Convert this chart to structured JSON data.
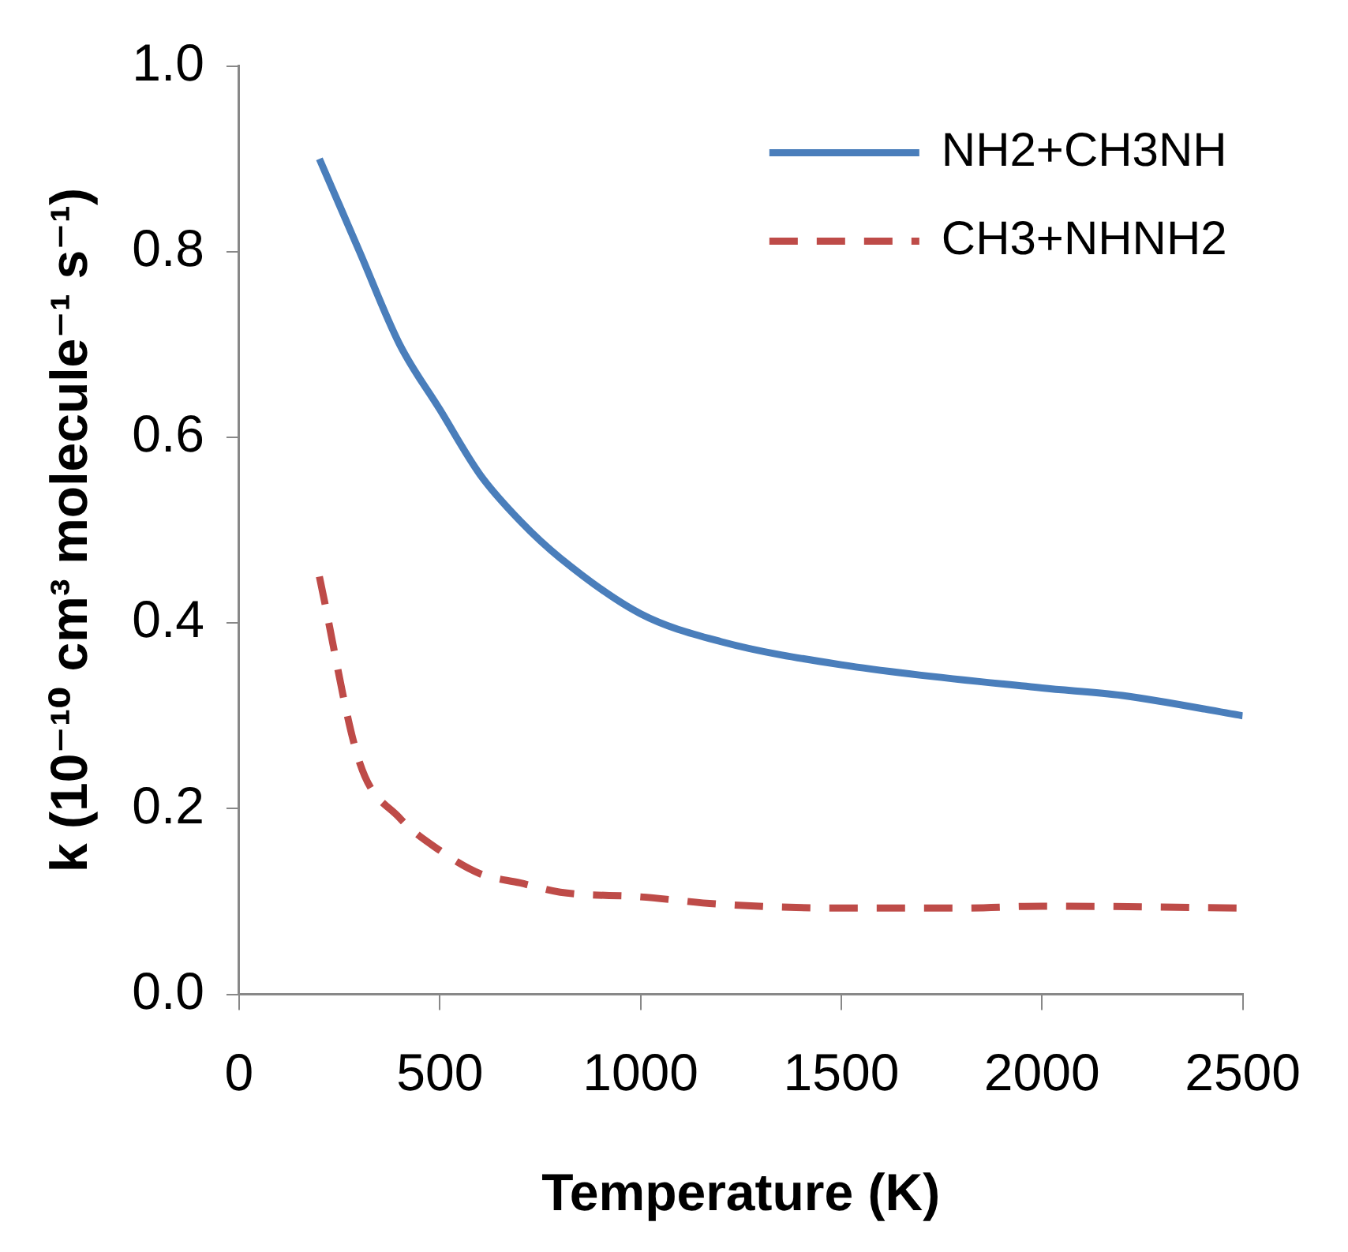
{
  "chart_data": {
    "type": "line",
    "xlabel": "Temperature (K)",
    "ylabel": "k (10⁻¹⁰ cm³ molecule⁻¹ s⁻¹)",
    "series": [
      {
        "name": "NH2+CH3NH",
        "color": "#4a7ebb",
        "line_style": "solid",
        "x": [
          200,
          300,
          400,
          500,
          600,
          700,
          800,
          1000,
          1200,
          1500,
          2000,
          2200,
          2500
        ],
        "values": [
          0.9,
          0.8,
          0.7,
          0.63,
          0.56,
          0.51,
          0.47,
          0.41,
          0.38,
          0.355,
          0.33,
          0.322,
          0.3
        ]
      },
      {
        "name": "CH3+NHNH2",
        "color": "#be4b48",
        "line_style": "dashed",
        "x": [
          200,
          300,
          400,
          500,
          600,
          700,
          800,
          1000,
          1200,
          1500,
          1800,
          2000,
          2500
        ],
        "values": [
          0.45,
          0.25,
          0.19,
          0.155,
          0.13,
          0.12,
          0.11,
          0.105,
          0.097,
          0.093,
          0.093,
          0.095,
          0.093
        ]
      }
    ],
    "xlim": [
      0,
      2500
    ],
    "xticks": [
      0,
      500,
      1000,
      1500,
      2000,
      2500
    ],
    "ylim": [
      0,
      1
    ],
    "yticks": [
      {
        "value": 0,
        "label": "0.0"
      },
      {
        "value": 0.2,
        "label": "0.2"
      },
      {
        "value": 0.4,
        "label": "0.4"
      },
      {
        "value": 0.6,
        "label": "0.6"
      },
      {
        "value": 0.8,
        "label": "0.8"
      },
      {
        "value": 1,
        "label": "1.0"
      }
    ],
    "grid": false,
    "legend": "top right",
    "marker": "none"
  }
}
